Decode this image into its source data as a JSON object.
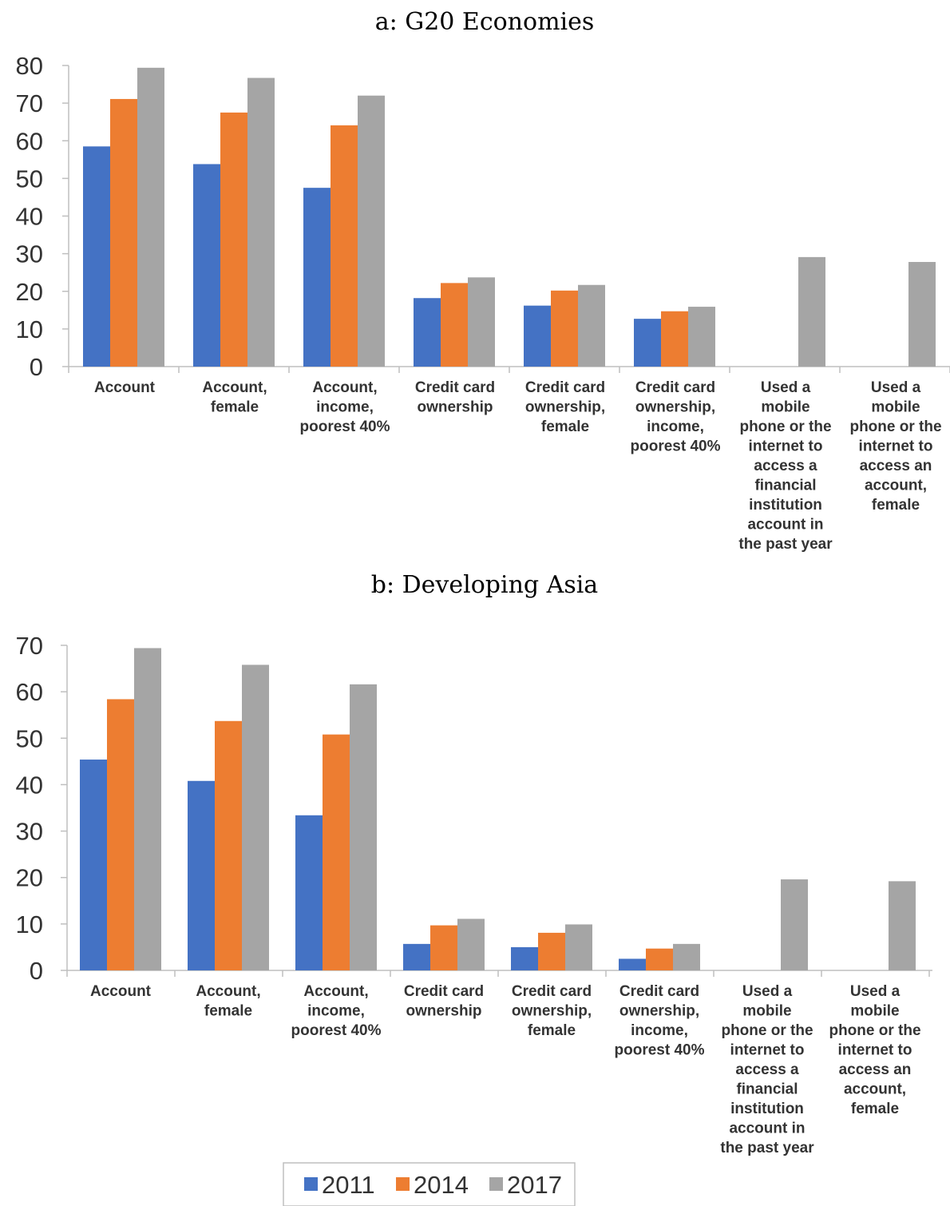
{
  "chart_data": [
    {
      "type": "bar",
      "title": "a: G20 Economies",
      "xlabel": "",
      "ylabel": "",
      "ylim": [
        0,
        80
      ],
      "yticks": [
        0,
        10,
        20,
        30,
        40,
        50,
        60,
        70,
        80
      ],
      "grid": false,
      "categories": [
        "Account",
        "Account, female",
        "Account, income, poorest 40%",
        "Credit card ownership",
        "Credit card ownership, female",
        "Credit card ownership, income, poorest 40%",
        "Used a mobile phone or the internet to access a financial institution account in the past year",
        "Used a mobile phone or the internet to access an account, female"
      ],
      "category_lines": [
        [
          "Account"
        ],
        [
          "Account,",
          "female"
        ],
        [
          "Account,",
          "income,",
          "poorest 40%"
        ],
        [
          "Credit card",
          "ownership"
        ],
        [
          "Credit card",
          "ownership,",
          "female"
        ],
        [
          "Credit card",
          "ownership,",
          "income,",
          "poorest 40%"
        ],
        [
          "Used a",
          "mobile",
          "phone or the",
          "internet to",
          "access a",
          "financial",
          "institution",
          "account in",
          "the past year"
        ],
        [
          "Used a",
          "mobile",
          "phone or the",
          "internet to",
          "access an",
          "account,",
          "female"
        ]
      ],
      "series": [
        {
          "name": "2011",
          "color": "#4472c4",
          "values": [
            58.5,
            53.8,
            47.5,
            18.2,
            16.2,
            12.7,
            null,
            null
          ]
        },
        {
          "name": "2014",
          "color": "#ed7d31",
          "values": [
            71.1,
            67.5,
            64.1,
            22.2,
            20.2,
            14.7,
            null,
            null
          ]
        },
        {
          "name": "2017",
          "color": "#a5a5a5",
          "values": [
            79.4,
            76.7,
            72.0,
            23.7,
            21.7,
            15.9,
            29.1,
            27.8
          ]
        }
      ]
    },
    {
      "type": "bar",
      "title": "b: Developing Asia",
      "xlabel": "",
      "ylabel": "",
      "ylim": [
        0,
        70
      ],
      "yticks": [
        0,
        10,
        20,
        30,
        40,
        50,
        60,
        70
      ],
      "grid": false,
      "categories": [
        "Account",
        "Account, female",
        "Account, income, poorest 40%",
        "Credit card ownership",
        "Credit card ownership, female",
        "Credit card ownership, income, poorest 40%",
        "Used a mobile phone or the internet to access a financial institution account in the past year",
        "Used a mobile phone or the internet to access an account, female"
      ],
      "category_lines": [
        [
          "Account"
        ],
        [
          "Account,",
          "female"
        ],
        [
          "Account,",
          "income,",
          "poorest 40%"
        ],
        [
          "Credit card",
          "ownership"
        ],
        [
          "Credit card",
          "ownership,",
          "female"
        ],
        [
          "Credit card",
          "ownership,",
          "income,",
          "poorest 40%"
        ],
        [
          "Used a",
          "mobile",
          "phone or the",
          "internet to",
          "access a",
          "financial",
          "institution",
          "account in",
          "the past year"
        ],
        [
          "Used a",
          "mobile",
          "phone or the",
          "internet to",
          "access an",
          "account,",
          "female"
        ]
      ],
      "series": [
        {
          "name": "2011",
          "color": "#4472c4",
          "values": [
            45.4,
            40.8,
            33.4,
            5.7,
            5.0,
            2.5,
            null,
            null
          ]
        },
        {
          "name": "2014",
          "color": "#ed7d31",
          "values": [
            58.4,
            53.7,
            50.8,
            9.7,
            8.1,
            4.7,
            null,
            null
          ]
        },
        {
          "name": "2017",
          "color": "#a5a5a5",
          "values": [
            69.4,
            65.8,
            61.6,
            11.1,
            9.9,
            5.7,
            19.6,
            19.2
          ]
        }
      ]
    }
  ],
  "legend": {
    "placement": "bottom-center",
    "items": [
      {
        "label": "2011",
        "color": "#4472c4"
      },
      {
        "label": "2014",
        "color": "#ed7d31"
      },
      {
        "label": "2017",
        "color": "#a5a5a5"
      }
    ]
  },
  "axis_color": "#bfbfbf"
}
